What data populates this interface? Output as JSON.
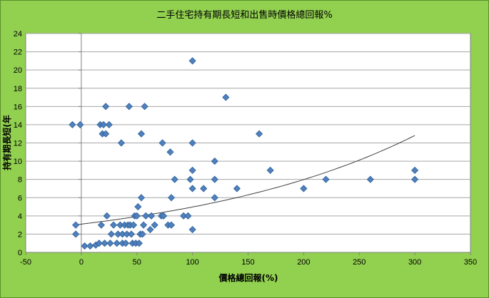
{
  "chart_data": {
    "type": "scatter",
    "title": "二手住宅持有期長短和出售時價格總回報%",
    "xlabel": "價格總回報(%)",
    "ylabel": "持有期長短(年",
    "xlim": [
      -50,
      350
    ],
    "ylim": [
      0,
      24
    ],
    "x_ticks": [
      -50,
      0,
      50,
      100,
      150,
      200,
      250,
      300,
      350
    ],
    "y_ticks": [
      0,
      2,
      4,
      6,
      8,
      10,
      12,
      14,
      16,
      18,
      20,
      22,
      24
    ],
    "grid": "horizontal",
    "legend": "none",
    "colors": {
      "background": "#92d050",
      "plot_area": "#ffffff",
      "marker": "#4f81bd",
      "marker_edge": "#2f5f9a",
      "trendline": "#404040",
      "grid": "#a6a6a6"
    },
    "series": [
      {
        "marker": "diamond",
        "points": [
          [
            -8,
            14
          ],
          [
            -5,
            3
          ],
          [
            -5,
            2
          ],
          [
            -1,
            14
          ],
          [
            3,
            0.7
          ],
          [
            8,
            0.7
          ],
          [
            13,
            0.8
          ],
          [
            16,
            1
          ],
          [
            18,
            3
          ],
          [
            17,
            14
          ],
          [
            19,
            13
          ],
          [
            20,
            14
          ],
          [
            21,
            1
          ],
          [
            22,
            16
          ],
          [
            23,
            4
          ],
          [
            22,
            13
          ],
          [
            25,
            14
          ],
          [
            26,
            1
          ],
          [
            27,
            2
          ],
          [
            29,
            3
          ],
          [
            32,
            1
          ],
          [
            33,
            2
          ],
          [
            35,
            3
          ],
          [
            36,
            12
          ],
          [
            37,
            1
          ],
          [
            37,
            2
          ],
          [
            39,
            3
          ],
          [
            40,
            1
          ],
          [
            41,
            2
          ],
          [
            42,
            3
          ],
          [
            43,
            16
          ],
          [
            44,
            3
          ],
          [
            45,
            2
          ],
          [
            46,
            1
          ],
          [
            47,
            3
          ],
          [
            48,
            4
          ],
          [
            49,
            1
          ],
          [
            50,
            4
          ],
          [
            51,
            5
          ],
          [
            52,
            1
          ],
          [
            53,
            2
          ],
          [
            54,
            13
          ],
          [
            54,
            6
          ],
          [
            55,
            2
          ],
          [
            56,
            3
          ],
          [
            57,
            16
          ],
          [
            58,
            4
          ],
          [
            62,
            2.5
          ],
          [
            63,
            4
          ],
          [
            66,
            3
          ],
          [
            72,
            4
          ],
          [
            73,
            12
          ],
          [
            74,
            4
          ],
          [
            78,
            3
          ],
          [
            80,
            11
          ],
          [
            81,
            3
          ],
          [
            81,
            6
          ],
          [
            84,
            8
          ],
          [
            92,
            4
          ],
          [
            96,
            4
          ],
          [
            98,
            8
          ],
          [
            100,
            21
          ],
          [
            100,
            12
          ],
          [
            100,
            9
          ],
          [
            100,
            7
          ],
          [
            100,
            2.5
          ],
          [
            110,
            7
          ],
          [
            120,
            10
          ],
          [
            120,
            8
          ],
          [
            120,
            6
          ],
          [
            130,
            17
          ],
          [
            140,
            7
          ],
          [
            160,
            13
          ],
          [
            170,
            9
          ],
          [
            200,
            7
          ],
          [
            220,
            8
          ],
          [
            260,
            8
          ],
          [
            300,
            9
          ],
          [
            300,
            8
          ]
        ]
      }
    ],
    "trendline": {
      "type": "exponential",
      "a": 3.1,
      "b": 0.00473,
      "x_range": [
        -5,
        300
      ]
    }
  }
}
